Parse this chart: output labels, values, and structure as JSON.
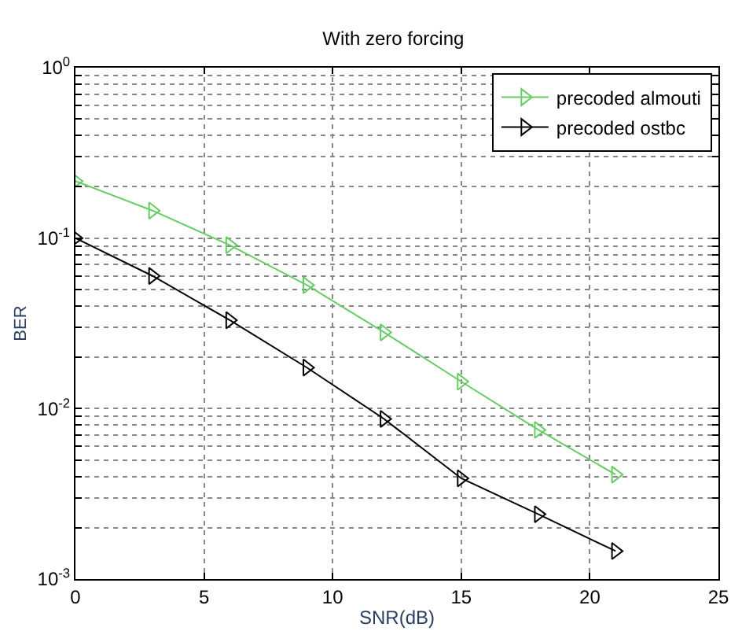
{
  "chart_data": {
    "type": "line",
    "title": "With zero forcing",
    "xlabel": "SNR(dB)",
    "ylabel": "BER",
    "x": [
      0,
      3,
      6,
      9,
      12,
      15,
      18,
      21
    ],
    "series": [
      {
        "name": "precoded almouti",
        "color": "#66cc66",
        "values": [
          0.216,
          0.145,
          0.091,
          0.053,
          0.028,
          0.0144,
          0.0075,
          0.0041
        ]
      },
      {
        "name": "precoded ostbc",
        "color": "#000000",
        "values": [
          0.1,
          0.06,
          0.033,
          0.0174,
          0.0087,
          0.0039,
          0.0024,
          0.00146
        ]
      }
    ],
    "log": "y",
    "xlim": [
      0,
      25
    ],
    "xticks": [
      0,
      5,
      10,
      15,
      20,
      25
    ],
    "ylim": [
      0.001,
      1
    ],
    "yticks": [
      {
        "value": 0.001,
        "label": "10$^{-3}$"
      },
      {
        "value": 0.002,
        "label": null
      },
      {
        "value": 0.003,
        "label": null
      },
      {
        "value": 0.004,
        "label": null
      },
      {
        "value": 0.005,
        "label": null
      },
      {
        "value": 0.006,
        "label": null
      },
      {
        "value": 0.007,
        "label": null
      },
      {
        "value": 0.008,
        "label": null
      },
      {
        "value": 0.009,
        "label": null
      },
      {
        "value": 0.01,
        "label": "10$^{-2}$"
      },
      {
        "value": 0.02,
        "label": null
      },
      {
        "value": 0.03,
        "label": null
      },
      {
        "value": 0.04,
        "label": null
      },
      {
        "value": 0.05,
        "label": null
      },
      {
        "value": 0.06,
        "label": null
      },
      {
        "value": 0.07,
        "label": null
      },
      {
        "value": 0.08,
        "label": null
      },
      {
        "value": 0.09,
        "label": null
      },
      {
        "value": 0.1,
        "label": "10$^{-1}$"
      },
      {
        "value": 0.2,
        "label": null
      },
      {
        "value": 0.3,
        "label": null
      },
      {
        "value": 0.4,
        "label": null
      },
      {
        "value": 0.5,
        "label": null
      },
      {
        "value": 0.6,
        "label": null
      },
      {
        "value": 0.7,
        "label": null
      },
      {
        "value": 0.8,
        "label": null
      },
      {
        "value": 0.9,
        "label": null
      },
      {
        "value": 1,
        "label": "10$^{0}$"
      }
    ],
    "grid": true,
    "legend": "top right",
    "marker": "triangle",
    "line_style": "solid"
  }
}
